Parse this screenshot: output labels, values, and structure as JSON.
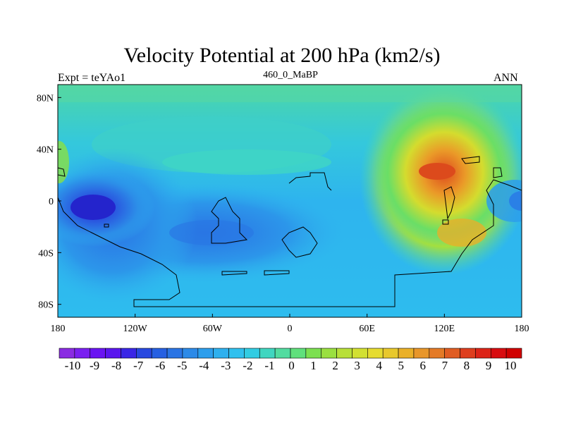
{
  "chart_data": {
    "type": "heatmap",
    "title": "Velocity Potential at 200 hPa (km2/s)",
    "left_string": "Expt = teYAo1",
    "center_string": "460_0_MaBP",
    "right_string": "ANN",
    "x_axis": {
      "range": [
        -180,
        180
      ],
      "ticks": [
        -180,
        -120,
        -60,
        0,
        60,
        120,
        180
      ],
      "tick_labels": [
        "180",
        "120W",
        "60W",
        "0",
        "60E",
        "120E",
        "180"
      ]
    },
    "y_axis": {
      "range": [
        -90,
        90
      ],
      "ticks": [
        80,
        40,
        0,
        -40,
        -80
      ],
      "tick_labels": [
        "80N",
        "40N",
        "0",
        "40S",
        "80S"
      ]
    },
    "colorbar": {
      "levels": [
        -10,
        -9,
        -8,
        -7,
        -6,
        -5,
        -4,
        -3,
        -2,
        -1,
        0,
        1,
        2,
        3,
        4,
        5,
        6,
        7,
        8,
        9,
        10
      ],
      "colors": [
        "#8a2be2",
        "#7a1ff0",
        "#6a14f2",
        "#5a16ee",
        "#3a26e6",
        "#2848e0",
        "#2660e2",
        "#2a74e4",
        "#2c8ae8",
        "#2c9eec",
        "#2eb0ee",
        "#30c0ee",
        "#32cce2",
        "#40d6c0",
        "#52dca0",
        "#60e07c",
        "#7ce050",
        "#9ae040",
        "#b8e038",
        "#d2e032",
        "#e6dc30",
        "#e8c82c",
        "#eab028",
        "#e8962a",
        "#e47a26",
        "#e05c22",
        "#de3e1e",
        "#dc2418",
        "#d80c10",
        "#d00000"
      ]
    },
    "fields": [
      {
        "name": "positive-maximum",
        "lon": 125,
        "lat": 22,
        "value": 9.0
      },
      {
        "name": "negative-minimum",
        "lon": -165,
        "lat": -5,
        "value": -6.5
      },
      {
        "name": "negative-secondary",
        "lon": -100,
        "lat": -30,
        "value": -4
      }
    ]
  }
}
